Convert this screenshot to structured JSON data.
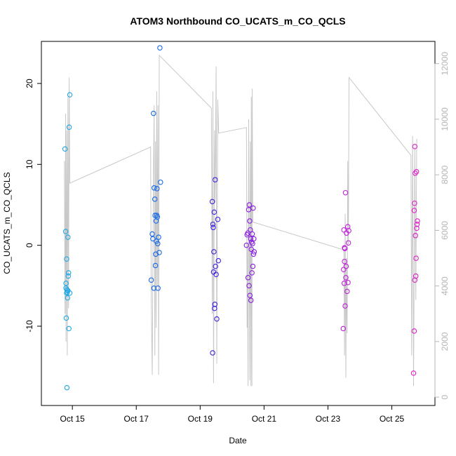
{
  "chart_data": {
    "type": "scatter",
    "title": "ATOM3 Northbound CO_UCATS_m_CO_QCLS",
    "xlabel": "Date",
    "ylabel": "CO_UCATS_m_CO_QCLS",
    "x_unit": "days in October",
    "xlim": [
      14.03,
      26.35
    ],
    "ylim": [
      -19.8,
      25.2
    ],
    "x_ticks": [
      15,
      17,
      19,
      21,
      23,
      25
    ],
    "x_tick_labels": [
      "Oct 15",
      "Oct 17",
      "Oct 19",
      "Oct 21",
      "Oct 23",
      "Oct 25"
    ],
    "y_ticks": [
      -10,
      0,
      10,
      20
    ],
    "y_tick_labels": [
      "-10",
      "0",
      "10",
      "20"
    ],
    "right_axis": {
      "ylim": [
        -300,
        12800
      ],
      "ticks": [
        0,
        2000,
        4000,
        6000,
        8000,
        10000,
        12000
      ],
      "tick_labels": [
        "0",
        "2000",
        "4000",
        "6000",
        "8000",
        "10000",
        "12000"
      ],
      "color": "#b5b5b5"
    },
    "grid": false,
    "legend": "none",
    "altitude_series": {
      "color": "#c8c8c8",
      "points": [
        [
          14.75,
          8500
        ],
        [
          14.77,
          3000
        ],
        [
          14.79,
          10200
        ],
        [
          14.8,
          2000
        ],
        [
          14.82,
          9600
        ],
        [
          14.84,
          1500
        ],
        [
          14.86,
          10800
        ],
        [
          14.88,
          3200
        ],
        [
          14.9,
          11500
        ],
        [
          14.92,
          7700
        ],
        [
          17.45,
          9000
        ],
        [
          17.47,
          3500
        ],
        [
          17.5,
          800
        ],
        [
          17.53,
          7000
        ],
        [
          17.56,
          10500
        ],
        [
          17.58,
          1500
        ],
        [
          17.6,
          9200
        ],
        [
          17.62,
          2500
        ],
        [
          17.64,
          11000
        ],
        [
          17.66,
          4000
        ],
        [
          17.68,
          10500
        ],
        [
          17.7,
          800
        ],
        [
          17.72,
          12300
        ],
        [
          19.35,
          10400
        ],
        [
          19.38,
          3000
        ],
        [
          19.4,
          11000
        ],
        [
          19.42,
          500
        ],
        [
          19.45,
          9600
        ],
        [
          19.47,
          7000
        ],
        [
          19.5,
          11900
        ],
        [
          19.52,
          1200
        ],
        [
          19.55,
          10700
        ],
        [
          19.58,
          9500
        ],
        [
          20.45,
          9700
        ],
        [
          20.47,
          2500
        ],
        [
          20.48,
          5500
        ],
        [
          20.5,
          400
        ],
        [
          20.52,
          10000
        ],
        [
          20.55,
          600
        ],
        [
          20.57,
          9200
        ],
        [
          20.59,
          400
        ],
        [
          20.6,
          10800
        ],
        [
          20.62,
          400
        ],
        [
          20.63,
          11100
        ],
        [
          20.65,
          6300
        ],
        [
          23.5,
          5300
        ],
        [
          23.52,
          1500
        ],
        [
          23.54,
          6600
        ],
        [
          23.56,
          700
        ],
        [
          23.58,
          5000
        ],
        [
          23.6,
          2300
        ],
        [
          23.62,
          8500
        ],
        [
          23.64,
          5500
        ],
        [
          23.66,
          11500
        ],
        [
          25.6,
          8700
        ],
        [
          25.62,
          1500
        ],
        [
          25.65,
          9400
        ],
        [
          25.68,
          400
        ],
        [
          25.72,
          9000
        ],
        [
          25.75,
          3500
        ],
        [
          25.78,
          9300
        ]
      ]
    },
    "series": [
      {
        "color": "#1fa8e6",
        "points": [
          [
            14.77,
            11.9
          ],
          [
            14.79,
            1.7
          ],
          [
            14.8,
            -4.7
          ],
          [
            14.81,
            -9.0
          ],
          [
            14.82,
            -1.7
          ],
          [
            14.83,
            -5.5
          ],
          [
            14.84,
            -5.8
          ],
          [
            14.85,
            -6.5
          ],
          [
            14.86,
            1.0
          ],
          [
            14.87,
            -3.8
          ],
          [
            14.88,
            -3.4
          ],
          [
            14.89,
            -10.3
          ],
          [
            14.9,
            14.6
          ],
          [
            14.92,
            -5.9
          ],
          [
            14.83,
            -17.6
          ],
          [
            14.92,
            18.6
          ],
          [
            14.82,
            -5.9
          ],
          [
            14.86,
            -5.6
          ],
          [
            14.8,
            -5.3
          ]
        ]
      },
      {
        "color": "#1669e8",
        "points": [
          [
            17.47,
            -4.3
          ],
          [
            17.5,
            1.4
          ],
          [
            17.52,
            0.8
          ],
          [
            17.54,
            16.3
          ],
          [
            17.55,
            -5.3
          ],
          [
            17.56,
            7.1
          ],
          [
            17.58,
            5.7
          ],
          [
            17.59,
            3.7
          ],
          [
            17.6,
            -2.5
          ],
          [
            17.61,
            -1.1
          ],
          [
            17.62,
            3.0
          ],
          [
            17.63,
            0.5
          ],
          [
            17.64,
            3.7
          ],
          [
            17.65,
            7.0
          ],
          [
            17.66,
            3.5
          ],
          [
            17.67,
            0.2
          ],
          [
            17.68,
            -5.3
          ],
          [
            17.7,
            1.0
          ],
          [
            17.72,
            -0.9
          ],
          [
            17.74,
            24.4
          ],
          [
            17.76,
            7.8
          ]
        ]
      },
      {
        "color": "#3f1fe0",
        "points": [
          [
            19.38,
            5.4
          ],
          [
            19.39,
            -13.3
          ],
          [
            19.4,
            2.6
          ],
          [
            19.41,
            2.2
          ],
          [
            19.42,
            -3.3
          ],
          [
            19.43,
            -0.8
          ],
          [
            19.44,
            4.1
          ],
          [
            19.45,
            -7.8
          ],
          [
            19.46,
            -7.3
          ],
          [
            19.47,
            8.1
          ],
          [
            19.48,
            -2.6
          ],
          [
            19.5,
            -3.6
          ],
          [
            19.52,
            -9.1
          ],
          [
            19.55,
            3.2
          ],
          [
            19.57,
            -1.9
          ]
        ]
      },
      {
        "color": "#8a1fe0",
        "points": [
          [
            20.45,
            0.0
          ],
          [
            20.47,
            1.3
          ],
          [
            20.49,
            1.5
          ],
          [
            20.5,
            -4.0
          ],
          [
            20.52,
            4.4
          ],
          [
            20.53,
            -5.0
          ],
          [
            20.54,
            5.0
          ],
          [
            20.55,
            3.0
          ],
          [
            20.56,
            -6.2
          ],
          [
            20.57,
            1.9
          ],
          [
            20.58,
            0.8
          ],
          [
            20.59,
            -6.8
          ],
          [
            20.6,
            -0.5
          ],
          [
            20.61,
            0.4
          ],
          [
            20.62,
            -3.4
          ],
          [
            20.63,
            1.4
          ],
          [
            20.64,
            0.2
          ],
          [
            20.65,
            -2.6
          ],
          [
            20.66,
            4.6
          ],
          [
            20.67,
            -1.1
          ],
          [
            20.68,
            0.8
          ],
          [
            20.69,
            -0.8
          ]
        ]
      },
      {
        "color": "#c21fdb",
        "points": [
          [
            23.48,
            -10.3
          ],
          [
            23.5,
            1.9
          ],
          [
            23.51,
            -4.7
          ],
          [
            23.52,
            -2.0
          ],
          [
            23.53,
            -0.4
          ],
          [
            23.54,
            -7.5
          ],
          [
            23.55,
            6.5
          ],
          [
            23.56,
            -4.0
          ],
          [
            23.57,
            -2.6
          ],
          [
            23.58,
            1.5
          ],
          [
            23.6,
            -5.7
          ],
          [
            23.62,
            2.3
          ],
          [
            23.63,
            -4.6
          ],
          [
            23.64,
            0.3
          ],
          [
            23.65,
            1.8
          ],
          [
            23.49,
            -3.0
          ],
          [
            23.52,
            -0.3
          ]
        ]
      },
      {
        "color": "#e01fc9",
        "points": [
          [
            25.68,
            -15.8
          ],
          [
            25.7,
            -10.6
          ],
          [
            25.71,
            5.2
          ],
          [
            25.72,
            12.2
          ],
          [
            25.73,
            8.9
          ],
          [
            25.74,
            1.2
          ],
          [
            25.75,
            -3.8
          ],
          [
            25.76,
            -1.6
          ],
          [
            25.77,
            9.1
          ],
          [
            25.78,
            2.1
          ],
          [
            25.79,
            2.6
          ],
          [
            25.8,
            3.0
          ],
          [
            25.7,
            4.3
          ],
          [
            25.72,
            -4.3
          ]
        ]
      }
    ]
  }
}
